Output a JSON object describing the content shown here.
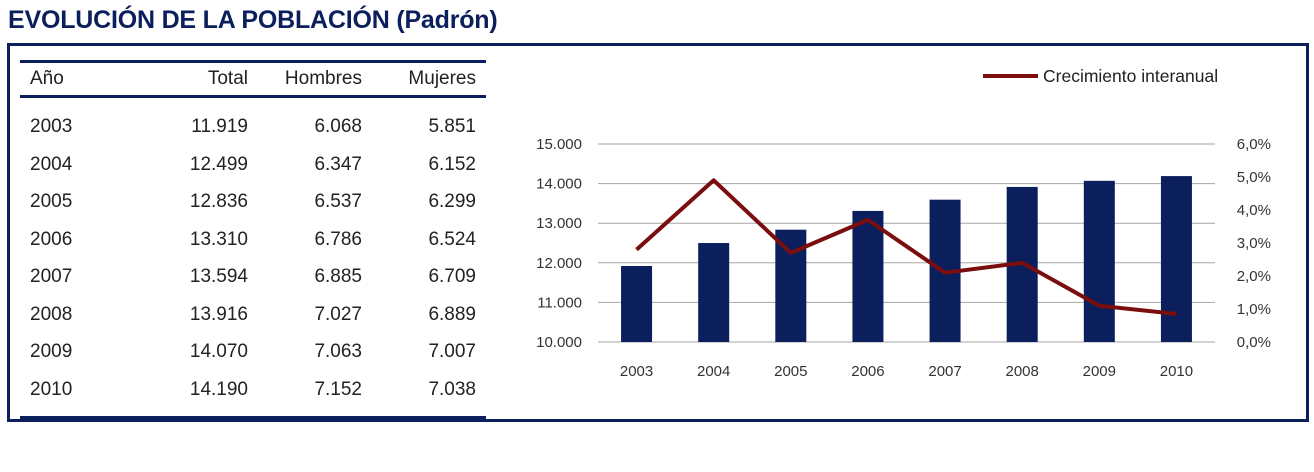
{
  "title": "EVOLUCIÓN DE LA POBLACIÓN (Padrón)",
  "table": {
    "headers": [
      "Año",
      "Total",
      "Hombres",
      "Mujeres"
    ],
    "rows": [
      [
        "2003",
        "11.919",
        "6.068",
        "5.851"
      ],
      [
        "2004",
        "12.499",
        "6.347",
        "6.152"
      ],
      [
        "2005",
        "12.836",
        "6.537",
        "6.299"
      ],
      [
        "2006",
        "13.310",
        "6.786",
        "6.524"
      ],
      [
        "2007",
        "13.594",
        "6.885",
        "6.709"
      ],
      [
        "2008",
        "13.916",
        "7.027",
        "6.889"
      ],
      [
        "2009",
        "14.070",
        "7.063",
        "7.007"
      ],
      [
        "2010",
        "14.190",
        "7.152",
        "7.038"
      ]
    ]
  },
  "colors": {
    "bar": "#0b1f5c",
    "line": "#7a0d0d",
    "frame": "#0b1f5c",
    "grid": "#a6a6a6"
  },
  "chart_data": {
    "type": "bar",
    "categories": [
      "2003",
      "2004",
      "2005",
      "2006",
      "2007",
      "2008",
      "2009",
      "2010"
    ],
    "series": [
      {
        "name": "Total",
        "type": "bar",
        "axis": "left",
        "values": [
          11919,
          12499,
          12836,
          13310,
          13594,
          13916,
          14070,
          14190
        ]
      },
      {
        "name": "Crecimiento interanual",
        "type": "line",
        "axis": "right",
        "values": [
          2.8,
          4.9,
          2.7,
          3.7,
          2.1,
          2.4,
          1.1,
          0.85
        ]
      }
    ],
    "left_axis": {
      "min": 10000,
      "max": 15000,
      "ticks": [
        "10.000",
        "11.000",
        "12.000",
        "13.000",
        "14.000",
        "15.000"
      ]
    },
    "right_axis": {
      "min": 0,
      "max": 6,
      "ticks": [
        "0,0%",
        "1,0%",
        "2,0%",
        "3,0%",
        "4,0%",
        "5,0%",
        "6,0%"
      ]
    },
    "legend": {
      "label": "Crecimiento interanual",
      "placement": "top-right"
    },
    "grid": true
  }
}
